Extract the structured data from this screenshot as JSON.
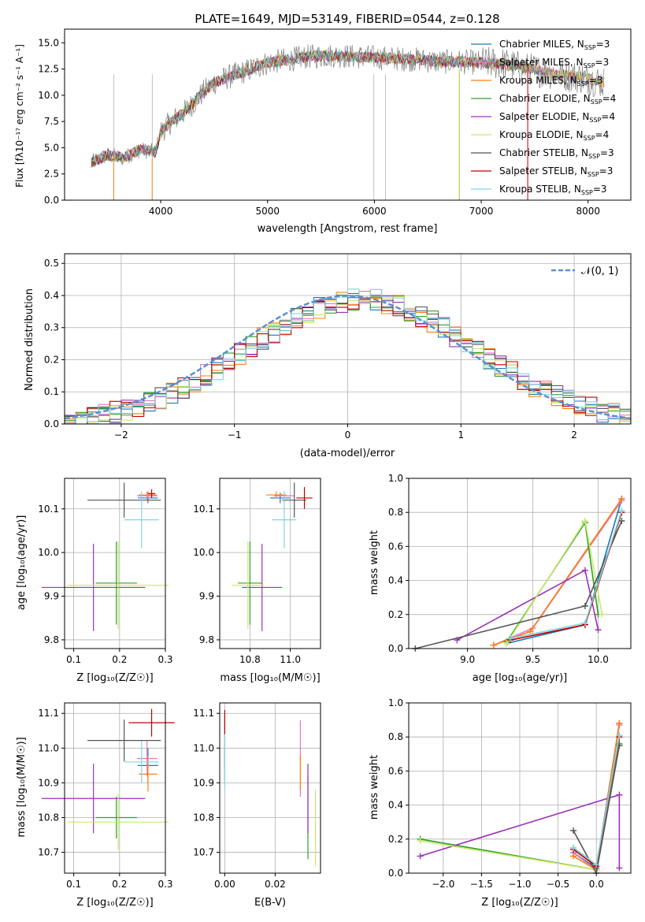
{
  "colors": {
    "chabrier_miles": "#1f77b4",
    "salpeter_miles": "#e377c2",
    "kroupa_miles": "#ff7f0e",
    "chabrier_elodie": "#2ca02c",
    "salpeter_elodie": "#9b30b8",
    "kroupa_elodie": "#c9e86a",
    "chabrier_stelib": "#555555",
    "salpeter_stelib": "#c00000",
    "kroupa_stelib": "#7fd6de",
    "normal": "#5b8fd6"
  },
  "chart_data": [
    {
      "id": "spectrum",
      "type": "line",
      "title": "PLATE=1649, MJD=53149, FIBERID=0544, z=0.128",
      "xlabel": "wavelength [Angstrom, rest frame]",
      "ylabel": "Flux [fλ10⁻¹⁷ erg cm⁻² s⁻¹ A⁻¹]",
      "xlim": [
        3100,
        8400
      ],
      "ylim": [
        0,
        16.3
      ],
      "xticks": [
        "4000",
        "5000",
        "6000",
        "7000",
        "8000"
      ],
      "yticks": [
        "0.0",
        "2.5",
        "5.0",
        "7.5",
        "10.0",
        "12.5",
        "15.0"
      ],
      "legend_position": "top-right",
      "continuum": {
        "x": [
          3350,
          3500,
          3650,
          3800,
          3950,
          4000,
          4100,
          4200,
          4300,
          4400,
          4500,
          4650,
          4800,
          5000,
          5200,
          5400,
          5600,
          5800,
          6000,
          6200,
          6400,
          6600,
          6800,
          7000,
          7200,
          7400,
          7600,
          7800,
          8000,
          8150
        ],
        "y": [
          3.6,
          4.3,
          4.0,
          4.8,
          4.6,
          6.5,
          7.5,
          8.2,
          9.2,
          10.3,
          11.2,
          11.8,
          12.3,
          13.1,
          13.4,
          13.7,
          13.8,
          13.7,
          13.6,
          13.5,
          13.4,
          13.2,
          13.2,
          13.1,
          13.0,
          12.6,
          12.2,
          11.9,
          11.6,
          11.2
        ]
      },
      "legend": [
        "Chabrier MILES, N_SSP=3",
        "Salpeter MILES, N_SSP=3",
        "Kroupa MILES, N_SSP=3",
        "Chabrier ELODIE, N_SSP=4",
        "Salpeter ELODIE, N_SSP=4",
        "Kroupa ELODIE, N_SSP=4",
        "Chabrier STELIB, N_SSP=3",
        "Salpeter STELIB, N_SSP=3",
        "Kroupa STELIB, N_SSP=3"
      ],
      "legend_labels": [
        {
          "name": "Chabrier MILES, N",
          "n": "3"
        },
        {
          "name": "Salpeter MILES, N",
          "n": "3"
        },
        {
          "name": "Kroupa MILES, N",
          "n": "3"
        },
        {
          "name": "Chabrier ELODIE, N",
          "n": "4"
        },
        {
          "name": "Salpeter ELODIE, N",
          "n": "4"
        },
        {
          "name": "Kroupa ELODIE, N",
          "n": "4"
        },
        {
          "name": "Chabrier STELIB, N",
          "n": "3"
        },
        {
          "name": "Salpeter STELIB, N",
          "n": "3"
        },
        {
          "name": "Kroupa STELIB, N",
          "n": "3"
        }
      ]
    },
    {
      "id": "residuals",
      "type": "line",
      "xlabel": "(data-model)/error",
      "ylabel": "Normed distribution",
      "xlim": [
        -2.5,
        2.5
      ],
      "ylim": [
        0,
        0.53
      ],
      "xticks": [
        "−2",
        "−1",
        "0",
        "1",
        "2"
      ],
      "yticks": [
        "0.0",
        "0.1",
        "0.2",
        "0.3",
        "0.4",
        "0.5"
      ],
      "grid": true,
      "legend": [
        "𝒩(0, 1)"
      ],
      "legend_position": "top-right",
      "series": [
        {
          "name": "𝒩(0, 1)",
          "mean": 0,
          "sigma": 1,
          "style": "dashed"
        }
      ]
    },
    {
      "id": "z_vs_age",
      "type": "scatter",
      "xlabel": "Z [log₁₀(Z/Z☉)]",
      "ylabel": "age  [log₁₀(age/yr)]",
      "xlim": [
        0.08,
        0.3
      ],
      "ylim": [
        9.78,
        10.17
      ],
      "xticks": [
        "0.1",
        "0.2",
        "0.3"
      ],
      "yticks": [
        "9.8",
        "9.9",
        "10.0",
        "10.1"
      ],
      "grid": true,
      "points": [
        {
          "c": "chabrier_miles",
          "x": 0.262,
          "y": 10.125,
          "xe": 0.022,
          "ye": 0.012
        },
        {
          "c": "salpeter_miles",
          "x": 0.26,
          "y": 10.13,
          "xe": 0.022,
          "ye": 0.01
        },
        {
          "c": "kroupa_miles",
          "x": 0.262,
          "y": 10.132,
          "xe": 0.02,
          "ye": 0.008
        },
        {
          "c": "chabrier_elodie",
          "x": 0.193,
          "y": 9.93,
          "xe": 0.045,
          "ye": 0.095
        },
        {
          "c": "salpeter_elodie",
          "x": 0.143,
          "y": 9.92,
          "xe": 0.113,
          "ye": 0.1
        },
        {
          "c": "kroupa_elodie",
          "x": 0.197,
          "y": 9.925,
          "xe": 0.11,
          "ye": 0.1
        },
        {
          "c": "chabrier_stelib",
          "x": 0.21,
          "y": 10.12,
          "xe": 0.08,
          "ye": 0.04
        },
        {
          "c": "salpeter_stelib",
          "x": 0.27,
          "y": 10.135,
          "xe": 0.008,
          "ye": 0.01
        },
        {
          "c": "kroupa_stelib",
          "x": 0.248,
          "y": 10.075,
          "xe": 0.038,
          "ye": 0.065
        }
      ]
    },
    {
      "id": "mass_vs_age",
      "type": "scatter",
      "xlabel": "mass [log₁₀(M/M☉)]",
      "ylabel": "",
      "xlim": [
        10.65,
        11.15
      ],
      "ylim": [
        9.78,
        10.17
      ],
      "xticks": [
        "10.8",
        "11.0"
      ],
      "yticks": [
        "9.8",
        "9.9",
        "10.0",
        "10.1"
      ],
      "grid": true,
      "points": [
        {
          "c": "chabrier_miles",
          "x": 10.95,
          "y": 10.125,
          "xe": 0.05,
          "ye": 0.012
        },
        {
          "c": "salpeter_miles",
          "x": 10.97,
          "y": 10.13,
          "xe": 0.05,
          "ye": 0.01
        },
        {
          "c": "kroupa_miles",
          "x": 10.93,
          "y": 10.132,
          "xe": 0.05,
          "ye": 0.008
        },
        {
          "c": "chabrier_elodie",
          "x": 10.8,
          "y": 9.93,
          "xe": 0.06,
          "ye": 0.095
        },
        {
          "c": "salpeter_elodie",
          "x": 10.86,
          "y": 9.92,
          "xe": 0.1,
          "ye": 0.1
        },
        {
          "c": "kroupa_elodie",
          "x": 10.79,
          "y": 9.925,
          "xe": 0.08,
          "ye": 0.1
        },
        {
          "c": "chabrier_stelib",
          "x": 11.02,
          "y": 10.12,
          "xe": 0.06,
          "ye": 0.04
        },
        {
          "c": "salpeter_stelib",
          "x": 11.07,
          "y": 10.125,
          "xe": 0.04,
          "ye": 0.025
        },
        {
          "c": "kroupa_stelib",
          "x": 10.97,
          "y": 10.075,
          "xe": 0.06,
          "ye": 0.065
        }
      ]
    },
    {
      "id": "age_vs_weight",
      "type": "line",
      "xlabel": "age  [log₁₀(age/yr)]",
      "ylabel": "mass weight",
      "xlim": [
        8.55,
        10.25
      ],
      "ylim": [
        0,
        1
      ],
      "xticks": [
        "9.0",
        "9.5",
        "10.0"
      ],
      "yticks": [
        "0.0",
        "0.2",
        "0.4",
        "0.6",
        "0.8",
        "1.0"
      ],
      "grid": true,
      "series": [
        {
          "c": "chabrier_miles",
          "x": [
            9.3,
            9.9,
            10.18
          ],
          "y": [
            0.03,
            0.14,
            0.88
          ]
        },
        {
          "c": "salpeter_miles",
          "x": [
            9.2,
            9.5,
            10.18
          ],
          "y": [
            0.02,
            0.12,
            0.87
          ]
        },
        {
          "c": "kroupa_miles",
          "x": [
            9.2,
            9.48,
            10.18
          ],
          "y": [
            0.02,
            0.1,
            0.88
          ]
        },
        {
          "c": "chabrier_elodie",
          "x": [
            9.3,
            9.9,
            10.0
          ],
          "y": [
            0.04,
            0.74,
            0.2
          ]
        },
        {
          "c": "salpeter_elodie",
          "x": [
            8.92,
            9.9,
            10.0
          ],
          "y": [
            0.05,
            0.46,
            0.11
          ]
        },
        {
          "c": "kroupa_elodie",
          "x": [
            9.3,
            9.9,
            10.03
          ],
          "y": [
            0.03,
            0.75,
            0.2
          ]
        },
        {
          "c": "chabrier_stelib",
          "x": [
            8.6,
            9.9,
            10.18
          ],
          "y": [
            0.0,
            0.25,
            0.75
          ]
        },
        {
          "c": "salpeter_stelib",
          "x": [
            9.33,
            9.9,
            10.18
          ],
          "y": [
            0.05,
            0.14,
            0.8
          ]
        },
        {
          "c": "kroupa_stelib",
          "x": [
            9.33,
            9.9,
            10.18
          ],
          "y": [
            0.06,
            0.15,
            0.81
          ]
        }
      ]
    },
    {
      "id": "z_vs_mass",
      "type": "scatter",
      "xlabel": "Z [log₁₀(Z/Z☉)]",
      "ylabel": "mass [log₁₀(M/M☉)]",
      "xlim": [
        0.08,
        0.3
      ],
      "ylim": [
        10.64,
        11.13
      ],
      "xticks": [
        "0.1",
        "0.2",
        "0.3"
      ],
      "yticks": [
        "10.7",
        "10.8",
        "10.9",
        "11.0",
        "11.1"
      ],
      "grid": true,
      "points": [
        {
          "c": "chabrier_miles",
          "x": 0.262,
          "y": 10.95,
          "xe": 0.022,
          "ye": 0.05
        },
        {
          "c": "salpeter_miles",
          "x": 0.26,
          "y": 10.97,
          "xe": 0.022,
          "ye": 0.05
        },
        {
          "c": "kroupa_miles",
          "x": 0.262,
          "y": 10.925,
          "xe": 0.02,
          "ye": 0.05
        },
        {
          "c": "chabrier_elodie",
          "x": 0.193,
          "y": 10.8,
          "xe": 0.045,
          "ye": 0.06
        },
        {
          "c": "salpeter_elodie",
          "x": 0.143,
          "y": 10.855,
          "xe": 0.113,
          "ye": 0.1
        },
        {
          "c": "kroupa_elodie",
          "x": 0.197,
          "y": 10.787,
          "xe": 0.11,
          "ye": 0.08
        },
        {
          "c": "chabrier_stelib",
          "x": 0.21,
          "y": 11.022,
          "xe": 0.08,
          "ye": 0.06
        },
        {
          "c": "salpeter_stelib",
          "x": 0.27,
          "y": 11.073,
          "xe": 0.05,
          "ye": 0.04
        },
        {
          "c": "kroupa_stelib",
          "x": 0.248,
          "y": 10.96,
          "xe": 0.038,
          "ye": 0.06
        }
      ]
    },
    {
      "id": "ebv_vs_mass",
      "type": "scatter",
      "xlabel": "E(B-V)",
      "ylabel": "",
      "xlim": [
        -0.002,
        0.038
      ],
      "ylim": [
        10.64,
        11.13
      ],
      "xticks": [
        "0.00",
        "0.02"
      ],
      "yticks": [
        "10.7",
        "10.8",
        "10.9",
        "11.0",
        "11.1"
      ],
      "grid": true,
      "points": [
        {
          "c": "chabrier_miles",
          "x": 0.0,
          "y": 10.95,
          "xe": 0,
          "ye": 0.05
        },
        {
          "c": "salpeter_miles",
          "x": 0.03,
          "y": 10.97,
          "xe": 0,
          "ye": 0.11
        },
        {
          "c": "kroupa_miles",
          "x": 0.03,
          "y": 10.93,
          "xe": 0,
          "ye": 0.05
        },
        {
          "c": "chabrier_elodie",
          "x": 0.033,
          "y": 10.8,
          "xe": 0,
          "ye": 0.12
        },
        {
          "c": "salpeter_elodie",
          "x": 0.033,
          "y": 10.855,
          "xe": 0,
          "ye": 0.1
        },
        {
          "c": "kroupa_elodie",
          "x": 0.036,
          "y": 10.77,
          "xe": 0,
          "ye": 0.11
        },
        {
          "c": "chabrier_stelib",
          "x": 0.0,
          "y": 11.02,
          "xe": 0,
          "ye": 0.08
        },
        {
          "c": "salpeter_stelib",
          "x": 0.0,
          "y": 11.07,
          "xe": 0,
          "ye": 0.04
        },
        {
          "c": "kroupa_stelib",
          "x": 0.0,
          "y": 10.96,
          "xe": 0,
          "ye": 0.08
        }
      ]
    },
    {
      "id": "z_vs_weight",
      "type": "line",
      "xlabel": "Z [log₁₀(Z/Z☉)]",
      "ylabel": "mass weight",
      "xlim": [
        -2.45,
        0.45
      ],
      "ylim": [
        0,
        1
      ],
      "xticks": [
        "−2.0",
        "−1.5",
        "−1.0",
        "−0.5",
        "0.0"
      ],
      "yticks": [
        "0.0",
        "0.2",
        "0.4",
        "0.6",
        "0.8",
        "1.0"
      ],
      "grid": true,
      "series": [
        {
          "c": "chabrier_miles",
          "x": [
            -0.3,
            0.0,
            0.3
          ],
          "y": [
            0.12,
            0.03,
            0.88
          ]
        },
        {
          "c": "salpeter_miles",
          "x": [
            -0.3,
            0.0,
            0.3
          ],
          "y": [
            0.12,
            0.02,
            0.87
          ]
        },
        {
          "c": "kroupa_miles",
          "x": [
            -0.3,
            0.0,
            0.3
          ],
          "y": [
            0.1,
            0.02,
            0.88
          ]
        },
        {
          "c": "chabrier_elodie",
          "x": [
            -2.3,
            0.0,
            0.3
          ],
          "y": [
            0.2,
            0.02,
            0.76
          ]
        },
        {
          "c": "salpeter_elodie",
          "x": [
            -2.3,
            0.3,
            0.3
          ],
          "y": [
            0.1,
            0.46,
            0.03
          ]
        },
        {
          "c": "kroupa_elodie",
          "x": [
            -2.3,
            0.0,
            0.3
          ],
          "y": [
            0.19,
            0.02,
            0.75
          ]
        },
        {
          "c": "chabrier_stelib",
          "x": [
            -0.3,
            0.0,
            0.3
          ],
          "y": [
            0.25,
            0.0,
            0.75
          ]
        },
        {
          "c": "salpeter_stelib",
          "x": [
            -0.3,
            0.0,
            0.3
          ],
          "y": [
            0.14,
            0.04,
            0.8
          ]
        },
        {
          "c": "kroupa_stelib",
          "x": [
            -0.3,
            0.0,
            0.3
          ],
          "y": [
            0.15,
            0.05,
            0.81
          ]
        }
      ]
    }
  ]
}
